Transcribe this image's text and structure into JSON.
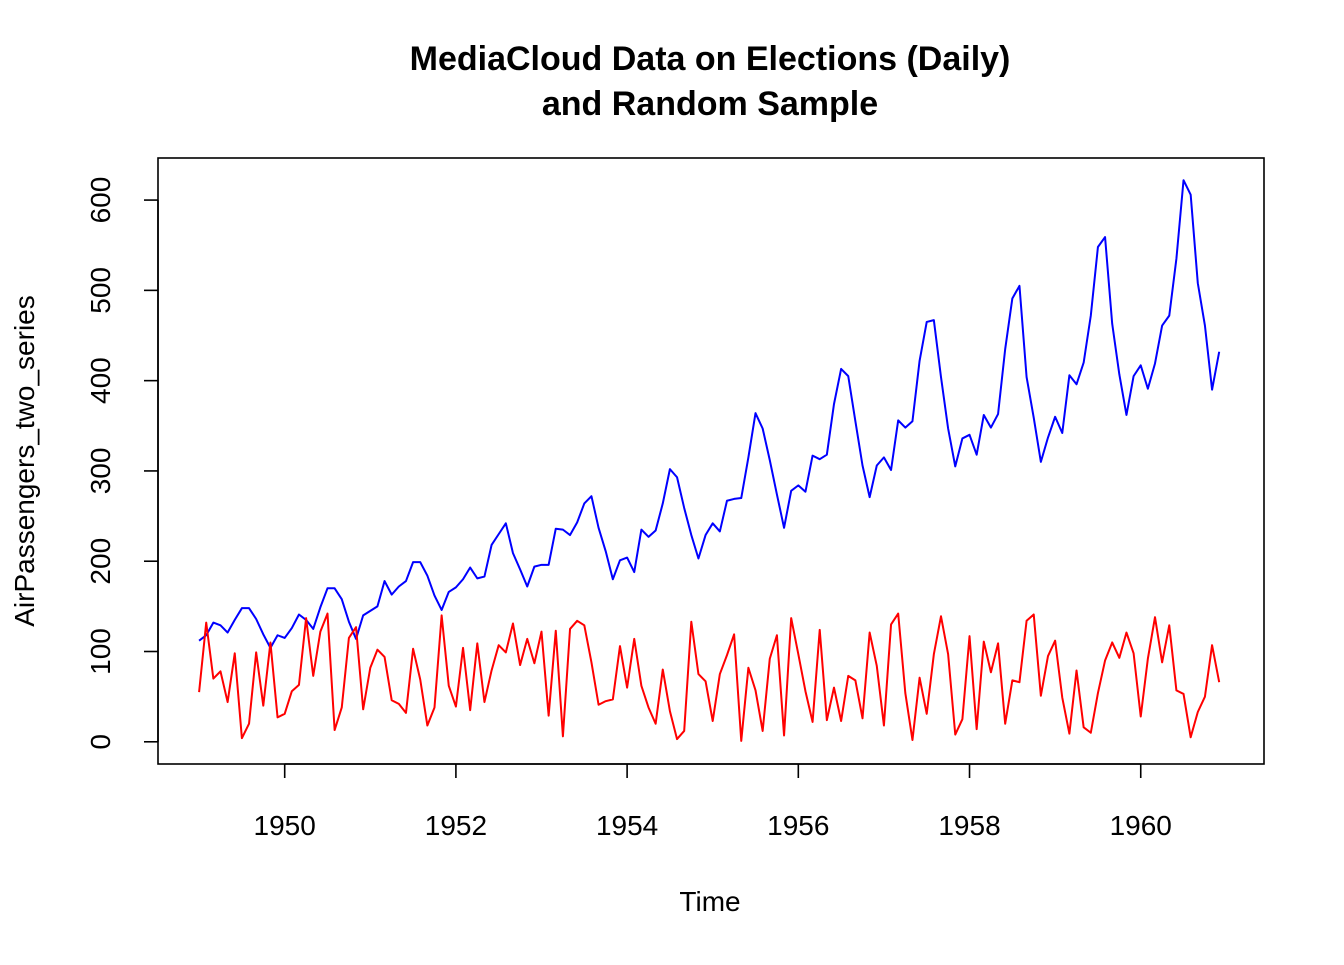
{
  "chart_data": {
    "type": "line",
    "title_line1": "MediaCloud Data on Elections (Daily)",
    "title_line2": "and Random Sample",
    "xlabel": "Time",
    "ylabel": "AirPassengers_two_series",
    "x_start": 1949.0,
    "x_step": 0.08333333,
    "xlim": [
      1948.52,
      1961.44
    ],
    "ylim": [
      -24.6,
      646.6
    ],
    "x_ticks": [
      1950,
      1952,
      1954,
      1956,
      1958,
      1960
    ],
    "y_ticks": [
      0,
      100,
      200,
      300,
      400,
      500,
      600
    ],
    "grid": false,
    "legend": "none",
    "series": [
      {
        "color": "#0000ff",
        "values": [
          112,
          118,
          132,
          129,
          121,
          135,
          148,
          148,
          136,
          119,
          104,
          118,
          115,
          126,
          141,
          135,
          125,
          149,
          170,
          170,
          158,
          133,
          114,
          140,
          145,
          150,
          178,
          163,
          172,
          178,
          199,
          199,
          184,
          162,
          146,
          166,
          171,
          180,
          193,
          181,
          183,
          218,
          230,
          242,
          209,
          191,
          172,
          194,
          196,
          196,
          236,
          235,
          229,
          243,
          264,
          272,
          237,
          211,
          180,
          201,
          204,
          188,
          235,
          227,
          234,
          264,
          302,
          293,
          259,
          229,
          203,
          229,
          242,
          233,
          267,
          269,
          270,
          315,
          364,
          347,
          312,
          274,
          237,
          278,
          284,
          277,
          317,
          313,
          318,
          374,
          413,
          405,
          355,
          306,
          271,
          306,
          315,
          301,
          356,
          348,
          355,
          422,
          465,
          467,
          404,
          347,
          305,
          336,
          340,
          318,
          362,
          348,
          363,
          435,
          491,
          505,
          404,
          359,
          310,
          337,
          360,
          342,
          406,
          396,
          420,
          472,
          548,
          559,
          463,
          407,
          362,
          405,
          417,
          391,
          419,
          461,
          472,
          535,
          622,
          606,
          508,
          461,
          390,
          432
        ]
      },
      {
        "color": "#ff0000",
        "values": [
          55,
          132,
          70,
          78,
          44,
          98,
          4,
          20,
          99,
          40,
          110,
          27,
          31,
          56,
          63,
          137,
          73,
          122,
          142,
          13,
          38,
          115,
          127,
          36,
          82,
          102,
          94,
          46,
          42,
          32,
          103,
          69,
          18,
          38,
          140,
          62,
          39,
          104,
          35,
          109,
          44,
          79,
          107,
          99,
          131,
          85,
          114,
          87,
          122,
          29,
          123,
          6,
          125,
          134,
          129,
          88,
          41,
          45,
          47,
          106,
          60,
          114,
          62,
          38,
          20,
          80,
          34,
          3,
          12,
          133,
          75,
          67,
          23,
          75,
          96,
          119,
          1,
          82,
          57,
          12,
          92,
          118,
          7,
          137,
          97,
          56,
          22,
          124,
          24,
          60,
          23,
          73,
          68,
          26,
          121,
          84,
          18,
          130,
          142,
          54,
          2,
          71,
          31,
          97,
          139,
          97,
          8,
          25,
          117,
          14,
          111,
          77,
          109,
          20,
          68,
          66,
          134,
          141,
          51,
          95,
          112,
          49,
          9,
          79,
          16,
          10,
          54,
          90,
          110,
          93,
          121,
          98,
          28,
          92,
          138,
          88,
          129,
          57,
          53,
          5,
          33,
          50,
          107,
          66
        ]
      }
    ]
  }
}
